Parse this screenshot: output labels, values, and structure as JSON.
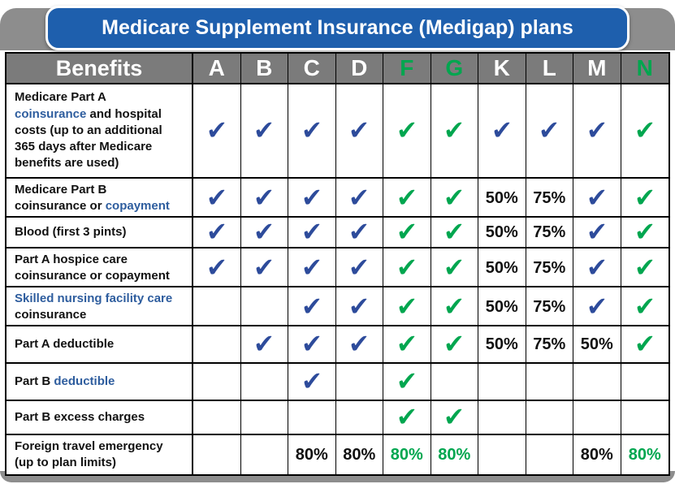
{
  "title": "Medicare Supplement Insurance (Medigap) plans",
  "benefits_header": "Benefits",
  "check_glyph": "✔",
  "colors": {
    "banner_blue": "#1e5fad",
    "frame_gray": "#8d8d8d",
    "header_gray": "#7b7b7b",
    "check_blue": "#2d4b9b",
    "check_green": "#00a64f",
    "benefit_text_blue": "#2e5d9e",
    "benefit_text_dark": "#111111"
  },
  "plans": [
    {
      "letter": "A",
      "highlight": false
    },
    {
      "letter": "B",
      "highlight": false
    },
    {
      "letter": "C",
      "highlight": false
    },
    {
      "letter": "D",
      "highlight": false
    },
    {
      "letter": "F",
      "highlight": true
    },
    {
      "letter": "G",
      "highlight": true
    },
    {
      "letter": "K",
      "highlight": false
    },
    {
      "letter": "L",
      "highlight": false
    },
    {
      "letter": "M",
      "highlight": false
    },
    {
      "letter": "N",
      "highlight": true
    }
  ],
  "rows": [
    {
      "benefit": [
        {
          "text": "Medicare Part A\n",
          "color": "dark"
        },
        {
          "text": "coinsurance",
          "color": "blue"
        },
        {
          "text": " and hospital\ncosts (up to an additional\n365 days after Medicare\nbenefits are used)",
          "color": "dark"
        }
      ],
      "cells": [
        {
          "type": "check",
          "color": "blue"
        },
        {
          "type": "check",
          "color": "blue"
        },
        {
          "type": "check",
          "color": "blue"
        },
        {
          "type": "check",
          "color": "blue"
        },
        {
          "type": "check",
          "color": "green"
        },
        {
          "type": "check",
          "color": "green"
        },
        {
          "type": "check",
          "color": "blue"
        },
        {
          "type": "check",
          "color": "blue"
        },
        {
          "type": "check",
          "color": "blue"
        },
        {
          "type": "check",
          "color": "green"
        }
      ]
    },
    {
      "benefit": [
        {
          "text": "Medicare Part B\ncoinsurance or ",
          "color": "dark"
        },
        {
          "text": "copayment",
          "color": "blue"
        }
      ],
      "cells": [
        {
          "type": "check",
          "color": "blue"
        },
        {
          "type": "check",
          "color": "blue"
        },
        {
          "type": "check",
          "color": "blue"
        },
        {
          "type": "check",
          "color": "blue"
        },
        {
          "type": "check",
          "color": "green"
        },
        {
          "type": "check",
          "color": "green"
        },
        {
          "type": "percent",
          "value": "50%",
          "color": "dark"
        },
        {
          "type": "percent",
          "value": "75%",
          "color": "dark"
        },
        {
          "type": "check",
          "color": "blue"
        },
        {
          "type": "check",
          "color": "green"
        }
      ]
    },
    {
      "benefit": [
        {
          "text": "Blood (first 3 pints)",
          "color": "dark"
        }
      ],
      "cells": [
        {
          "type": "check",
          "color": "blue"
        },
        {
          "type": "check",
          "color": "blue"
        },
        {
          "type": "check",
          "color": "blue"
        },
        {
          "type": "check",
          "color": "blue"
        },
        {
          "type": "check",
          "color": "green"
        },
        {
          "type": "check",
          "color": "green"
        },
        {
          "type": "percent",
          "value": "50%",
          "color": "dark"
        },
        {
          "type": "percent",
          "value": "75%",
          "color": "dark"
        },
        {
          "type": "check",
          "color": "blue"
        },
        {
          "type": "check",
          "color": "green"
        }
      ]
    },
    {
      "benefit": [
        {
          "text": "Part A hospice care\ncoinsurance or copayment",
          "color": "dark"
        }
      ],
      "cells": [
        {
          "type": "check",
          "color": "blue"
        },
        {
          "type": "check",
          "color": "blue"
        },
        {
          "type": "check",
          "color": "blue"
        },
        {
          "type": "check",
          "color": "blue"
        },
        {
          "type": "check",
          "color": "green"
        },
        {
          "type": "check",
          "color": "green"
        },
        {
          "type": "percent",
          "value": "50%",
          "color": "dark"
        },
        {
          "type": "percent",
          "value": "75%",
          "color": "dark"
        },
        {
          "type": "check",
          "color": "blue"
        },
        {
          "type": "check",
          "color": "green"
        }
      ]
    },
    {
      "benefit": [
        {
          "text": "Skilled nursing facility care",
          "color": "blue"
        },
        {
          "text": "\ncoinsurance",
          "color": "dark"
        }
      ],
      "cells": [
        {
          "type": "empty"
        },
        {
          "type": "empty"
        },
        {
          "type": "check",
          "color": "blue"
        },
        {
          "type": "check",
          "color": "blue"
        },
        {
          "type": "check",
          "color": "green"
        },
        {
          "type": "check",
          "color": "green"
        },
        {
          "type": "percent",
          "value": "50%",
          "color": "dark"
        },
        {
          "type": "percent",
          "value": "75%",
          "color": "dark"
        },
        {
          "type": "check",
          "color": "blue"
        },
        {
          "type": "check",
          "color": "green"
        }
      ]
    },
    {
      "benefit": [
        {
          "text": "Part A deductible",
          "color": "dark"
        }
      ],
      "cells": [
        {
          "type": "empty"
        },
        {
          "type": "check",
          "color": "blue"
        },
        {
          "type": "check",
          "color": "blue"
        },
        {
          "type": "check",
          "color": "blue"
        },
        {
          "type": "check",
          "color": "green"
        },
        {
          "type": "check",
          "color": "green"
        },
        {
          "type": "percent",
          "value": "50%",
          "color": "dark"
        },
        {
          "type": "percent",
          "value": "75%",
          "color": "dark"
        },
        {
          "type": "percent",
          "value": "50%",
          "color": "dark"
        },
        {
          "type": "check",
          "color": "green"
        }
      ]
    },
    {
      "benefit": [
        {
          "text": "Part B ",
          "color": "dark"
        },
        {
          "text": "deductible",
          "color": "blue"
        }
      ],
      "cells": [
        {
          "type": "empty"
        },
        {
          "type": "empty"
        },
        {
          "type": "check",
          "color": "blue"
        },
        {
          "type": "empty"
        },
        {
          "type": "check",
          "color": "green"
        },
        {
          "type": "empty"
        },
        {
          "type": "empty"
        },
        {
          "type": "empty"
        },
        {
          "type": "empty"
        },
        {
          "type": "empty"
        }
      ]
    },
    {
      "benefit": [
        {
          "text": "Part B excess charges",
          "color": "dark"
        }
      ],
      "cells": [
        {
          "type": "empty"
        },
        {
          "type": "empty"
        },
        {
          "type": "empty"
        },
        {
          "type": "empty"
        },
        {
          "type": "check",
          "color": "green"
        },
        {
          "type": "check",
          "color": "green"
        },
        {
          "type": "empty"
        },
        {
          "type": "empty"
        },
        {
          "type": "empty"
        },
        {
          "type": "empty"
        }
      ]
    },
    {
      "benefit": [
        {
          "text": "Foreign travel emergency\n(up to plan limits)",
          "color": "dark"
        }
      ],
      "cells": [
        {
          "type": "empty"
        },
        {
          "type": "empty"
        },
        {
          "type": "percent",
          "value": "80%",
          "color": "dark"
        },
        {
          "type": "percent",
          "value": "80%",
          "color": "dark"
        },
        {
          "type": "percent",
          "value": "80%",
          "color": "green"
        },
        {
          "type": "percent",
          "value": "80%",
          "color": "green"
        },
        {
          "type": "empty"
        },
        {
          "type": "empty"
        },
        {
          "type": "percent",
          "value": "80%",
          "color": "dark"
        },
        {
          "type": "percent",
          "value": "80%",
          "color": "green"
        }
      ]
    }
  ],
  "chart_data": {
    "type": "table",
    "title": "Medicare Supplement Insurance (Medigap) plans",
    "columns": [
      "Benefits",
      "A",
      "B",
      "C",
      "D",
      "F",
      "G",
      "K",
      "L",
      "M",
      "N"
    ],
    "rows": [
      [
        "Medicare Part A coinsurance and hospital costs (up to an additional 365 days after Medicare benefits are used)",
        "✓",
        "✓",
        "✓",
        "✓",
        "✓",
        "✓",
        "✓",
        "✓",
        "✓",
        "✓"
      ],
      [
        "Medicare Part B coinsurance or copayment",
        "✓",
        "✓",
        "✓",
        "✓",
        "✓",
        "✓",
        "50%",
        "75%",
        "✓",
        "✓"
      ],
      [
        "Blood (first 3 pints)",
        "✓",
        "✓",
        "✓",
        "✓",
        "✓",
        "✓",
        "50%",
        "75%",
        "✓",
        "✓"
      ],
      [
        "Part A hospice care coinsurance or copayment",
        "✓",
        "✓",
        "✓",
        "✓",
        "✓",
        "✓",
        "50%",
        "75%",
        "✓",
        "✓"
      ],
      [
        "Skilled nursing facility care coinsurance",
        "",
        "",
        "✓",
        "✓",
        "✓",
        "✓",
        "50%",
        "75%",
        "✓",
        "✓"
      ],
      [
        "Part A deductible",
        "",
        "✓",
        "✓",
        "✓",
        "✓",
        "✓",
        "50%",
        "75%",
        "50%",
        "✓"
      ],
      [
        "Part B deductible",
        "",
        "",
        "✓",
        "",
        "✓",
        "",
        "",
        "",
        "",
        ""
      ],
      [
        "Part B excess charges",
        "",
        "",
        "",
        "",
        "✓",
        "✓",
        "",
        "",
        "",
        ""
      ],
      [
        "Foreign travel emergency (up to plan limits)",
        "",
        "",
        "80%",
        "80%",
        "80%",
        "80%",
        "",
        "",
        "80%",
        "80%"
      ]
    ]
  }
}
